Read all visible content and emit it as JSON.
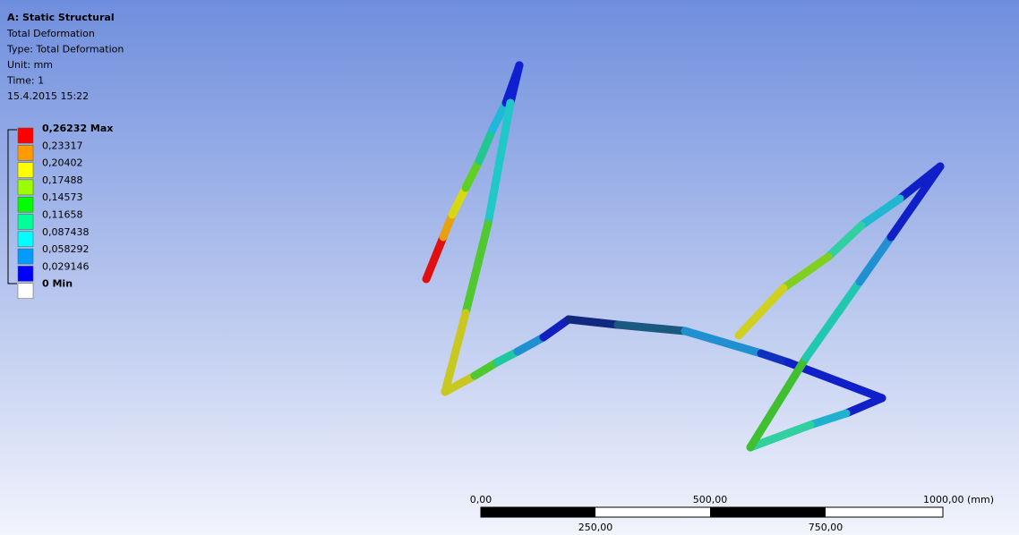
{
  "header": {
    "title": "A: Static Structural",
    "lines": [
      "Total Deformation",
      "Type: Total Deformation",
      "Unit: mm",
      "Time: 1",
      "15.4.2015 15:22"
    ]
  },
  "legend": {
    "entries": [
      {
        "label": "0,26232 Max",
        "color": "#ff0000"
      },
      {
        "label": "0,23317",
        "color": "#ff9b00"
      },
      {
        "label": "0,20402",
        "color": "#ffff00"
      },
      {
        "label": "0,17488",
        "color": "#9bff00"
      },
      {
        "label": "0,14573",
        "color": "#00ff00"
      },
      {
        "label": "0,11658",
        "color": "#00ff9b"
      },
      {
        "label": "0,087438",
        "color": "#00ffff"
      },
      {
        "label": "0,058292",
        "color": "#009bff"
      },
      {
        "label": "0,029146",
        "color": "#0000ff"
      },
      {
        "label": "0 Min",
        "color": "#ffffff"
      }
    ]
  },
  "scale_bar": {
    "top_labels": [
      "0,00",
      "500,00",
      "1000,00 (mm)"
    ],
    "bottom_labels": [
      "250,00",
      "750,00"
    ]
  }
}
